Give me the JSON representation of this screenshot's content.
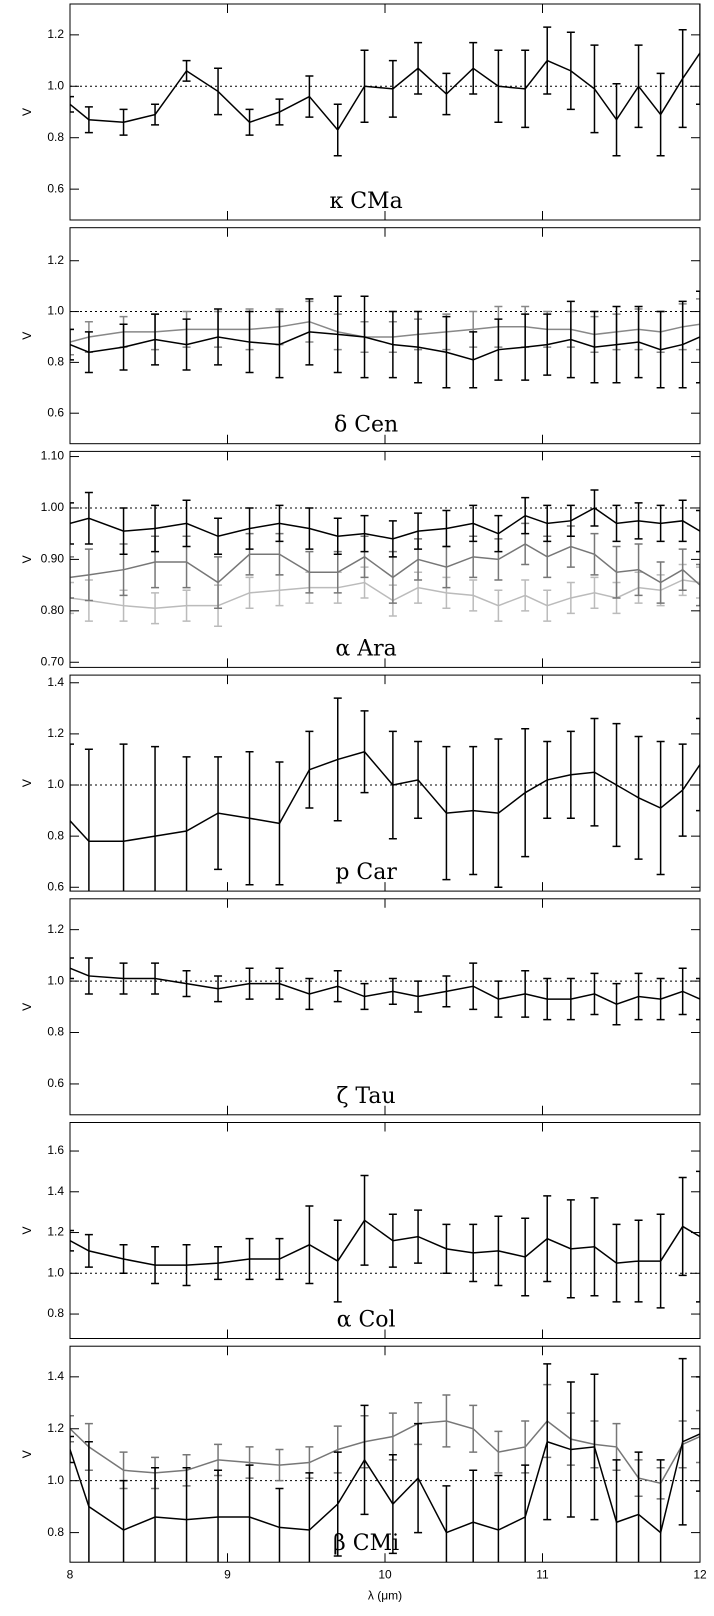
{
  "chart_data": [
    {
      "type": "line",
      "annotation": "κ CMa",
      "ylabel": "V",
      "xlim": [
        8,
        12
      ],
      "xticks": [
        8,
        9,
        10,
        11,
        12
      ],
      "ylim": [
        0.48,
        1.32
      ],
      "yticks": [
        0.6,
        0.8,
        {
          "value": 1,
          "label": "1.0"
        },
        1.2
      ],
      "reference_line": 1,
      "x": [
        8.0,
        8.12,
        8.34,
        8.54,
        8.74,
        8.94,
        9.14,
        9.33,
        9.52,
        9.7,
        9.87,
        10.05,
        10.21,
        10.39,
        10.56,
        10.72,
        10.89,
        11.03,
        11.18,
        11.33,
        11.47,
        11.61,
        11.75,
        11.89,
        12.0
      ],
      "series": [
        {
          "color": "#000000",
          "values": [
            0.93,
            0.87,
            0.86,
            0.89,
            1.06,
            0.98,
            0.86,
            0.9,
            0.96,
            0.83,
            1.0,
            0.99,
            1.07,
            0.97,
            1.07,
            1.0,
            0.99,
            1.1,
            1.06,
            0.99,
            0.87,
            1.0,
            0.89,
            1.03,
            1.13
          ],
          "errors": [
            0.03,
            0.05,
            0.05,
            0.04,
            0.04,
            0.09,
            0.05,
            0.05,
            0.08,
            0.1,
            0.14,
            0.11,
            0.1,
            0.08,
            0.1,
            0.14,
            0.15,
            0.13,
            0.15,
            0.17,
            0.14,
            0.16,
            0.16,
            0.19,
            0.2
          ]
        }
      ]
    },
    {
      "type": "line",
      "annotation": "δ Cen",
      "ylabel": "V",
      "xlim": [
        8,
        12
      ],
      "xticks": [
        8,
        9,
        10,
        11,
        12
      ],
      "ylim": [
        0.48,
        1.33
      ],
      "yticks": [
        0.6,
        0.8,
        {
          "value": 1,
          "label": "1.0"
        },
        1.2
      ],
      "reference_line": 1,
      "x": [
        8.0,
        8.12,
        8.34,
        8.54,
        8.74,
        8.94,
        9.14,
        9.33,
        9.52,
        9.7,
        9.87,
        10.05,
        10.21,
        10.39,
        10.56,
        10.72,
        10.89,
        11.03,
        11.18,
        11.33,
        11.47,
        11.61,
        11.75,
        11.89,
        12.0
      ],
      "series": [
        {
          "color": "#888888",
          "values": [
            0.88,
            0.9,
            0.92,
            0.92,
            0.93,
            0.93,
            0.93,
            0.94,
            0.96,
            0.92,
            0.9,
            0.9,
            0.91,
            0.92,
            0.93,
            0.94,
            0.94,
            0.93,
            0.93,
            0.91,
            0.92,
            0.93,
            0.92,
            0.94,
            0.95
          ],
          "errors": [
            0.05,
            0.06,
            0.06,
            0.07,
            0.07,
            0.07,
            0.08,
            0.07,
            0.08,
            0.07,
            0.06,
            0.06,
            0.06,
            0.07,
            0.07,
            0.08,
            0.08,
            0.07,
            0.07,
            0.07,
            0.07,
            0.08,
            0.08,
            0.09,
            0.1
          ]
        },
        {
          "color": "#000000",
          "values": [
            0.87,
            0.84,
            0.86,
            0.89,
            0.87,
            0.9,
            0.88,
            0.87,
            0.92,
            0.91,
            0.9,
            0.87,
            0.86,
            0.84,
            0.81,
            0.85,
            0.86,
            0.87,
            0.89,
            0.86,
            0.87,
            0.88,
            0.85,
            0.87,
            0.9
          ],
          "errors": [
            0.06,
            0.08,
            0.09,
            0.1,
            0.1,
            0.11,
            0.12,
            0.13,
            0.13,
            0.15,
            0.16,
            0.13,
            0.14,
            0.14,
            0.11,
            0.12,
            0.13,
            0.12,
            0.15,
            0.14,
            0.15,
            0.14,
            0.15,
            0.17,
            0.18
          ]
        }
      ]
    },
    {
      "type": "line",
      "annotation": "α Ara",
      "ylabel": "V",
      "xlim": [
        8,
        12
      ],
      "xticks": [
        8,
        9,
        10,
        11,
        12
      ],
      "ylim": [
        0.69,
        1.11
      ],
      "yticks": [
        {
          "value": 0.7,
          "label": "0.70"
        },
        {
          "value": 0.8,
          "label": "0.80"
        },
        {
          "value": 0.9,
          "label": "0.90"
        },
        {
          "value": 1,
          "label": "1.00"
        },
        {
          "value": 1.1,
          "label": "1.10"
        }
      ],
      "reference_line": 1,
      "x": [
        8.0,
        8.12,
        8.34,
        8.54,
        8.74,
        8.94,
        9.14,
        9.33,
        9.52,
        9.7,
        9.87,
        10.05,
        10.21,
        10.39,
        10.56,
        10.72,
        10.89,
        11.03,
        11.18,
        11.33,
        11.47,
        11.61,
        11.75,
        11.89,
        12.0
      ],
      "series": [
        {
          "color": "#bbbbbb",
          "values": [
            0.825,
            0.82,
            0.81,
            0.805,
            0.81,
            0.81,
            0.835,
            0.84,
            0.845,
            0.845,
            0.855,
            0.82,
            0.845,
            0.835,
            0.83,
            0.81,
            0.83,
            0.81,
            0.825,
            0.835,
            0.825,
            0.845,
            0.84,
            0.86,
            0.855
          ],
          "errors": [
            0.03,
            0.04,
            0.03,
            0.03,
            0.03,
            0.04,
            0.03,
            0.03,
            0.03,
            0.03,
            0.03,
            0.03,
            0.03,
            0.03,
            0.03,
            0.03,
            0.03,
            0.03,
            0.03,
            0.03,
            0.03,
            0.03,
            0.03,
            0.03,
            0.03
          ]
        },
        {
          "color": "#777777",
          "values": [
            0.865,
            0.87,
            0.88,
            0.895,
            0.895,
            0.855,
            0.91,
            0.91,
            0.875,
            0.875,
            0.905,
            0.865,
            0.9,
            0.885,
            0.905,
            0.9,
            0.93,
            0.905,
            0.925,
            0.91,
            0.875,
            0.88,
            0.855,
            0.88,
            0.85
          ],
          "errors": [
            0.04,
            0.05,
            0.05,
            0.05,
            0.05,
            0.05,
            0.04,
            0.04,
            0.04,
            0.04,
            0.04,
            0.05,
            0.04,
            0.04,
            0.04,
            0.04,
            0.04,
            0.04,
            0.04,
            0.04,
            0.05,
            0.05,
            0.04,
            0.04,
            0.04
          ]
        },
        {
          "color": "#000000",
          "values": [
            0.97,
            0.98,
            0.955,
            0.96,
            0.97,
            0.945,
            0.96,
            0.97,
            0.96,
            0.945,
            0.95,
            0.94,
            0.955,
            0.96,
            0.97,
            0.95,
            0.985,
            0.97,
            0.975,
            1.0,
            0.97,
            0.975,
            0.97,
            0.975,
            0.955
          ],
          "errors": [
            0.04,
            0.05,
            0.045,
            0.045,
            0.045,
            0.035,
            0.04,
            0.035,
            0.04,
            0.035,
            0.035,
            0.035,
            0.035,
            0.035,
            0.035,
            0.035,
            0.035,
            0.035,
            0.03,
            0.035,
            0.035,
            0.035,
            0.035,
            0.04,
            0.04
          ]
        }
      ]
    },
    {
      "type": "line",
      "annotation": "p Car",
      "ylabel": "V",
      "xlim": [
        8,
        12
      ],
      "xticks": [
        8,
        9,
        10,
        11,
        12
      ],
      "ylim": [
        0.585,
        1.43
      ],
      "yticks": [
        0.6,
        0.8,
        {
          "value": 1,
          "label": "1.0"
        },
        1.2,
        1.4
      ],
      "reference_line": 1,
      "x": [
        8.0,
        8.12,
        8.34,
        8.54,
        8.74,
        8.94,
        9.14,
        9.33,
        9.52,
        9.7,
        9.87,
        10.05,
        10.21,
        10.39,
        10.56,
        10.72,
        10.89,
        11.03,
        11.18,
        11.33,
        11.47,
        11.61,
        11.75,
        11.89,
        12.0
      ],
      "series": [
        {
          "color": "#000000",
          "values": [
            0.86,
            0.78,
            0.78,
            0.8,
            0.82,
            0.89,
            0.87,
            0.85,
            1.06,
            1.1,
            1.13,
            1.0,
            1.02,
            0.89,
            0.9,
            0.89,
            0.97,
            1.02,
            1.04,
            1.05,
            1.0,
            0.95,
            0.91,
            0.98,
            1.08
          ],
          "errors": [
            0.3,
            0.36,
            0.38,
            0.35,
            0.29,
            0.22,
            0.26,
            0.24,
            0.15,
            0.24,
            0.16,
            0.21,
            0.15,
            0.26,
            0.25,
            0.29,
            0.25,
            0.15,
            0.17,
            0.21,
            0.24,
            0.24,
            0.26,
            0.18,
            0.18
          ]
        }
      ]
    },
    {
      "type": "line",
      "annotation": "ζ Tau",
      "ylabel": "V",
      "xlim": [
        8,
        12
      ],
      "xticks": [
        8,
        9,
        10,
        11,
        12
      ],
      "ylim": [
        0.48,
        1.32
      ],
      "yticks": [
        0.6,
        0.8,
        {
          "value": 1,
          "label": "1.0"
        },
        1.2
      ],
      "reference_line": 1,
      "x": [
        8.0,
        8.12,
        8.34,
        8.54,
        8.74,
        8.94,
        9.14,
        9.33,
        9.52,
        9.7,
        9.87,
        10.05,
        10.21,
        10.39,
        10.56,
        10.72,
        10.89,
        11.03,
        11.18,
        11.33,
        11.47,
        11.61,
        11.75,
        11.89,
        12.0
      ],
      "series": [
        {
          "color": "#000000",
          "values": [
            1.05,
            1.02,
            1.01,
            1.01,
            0.99,
            0.97,
            0.99,
            0.99,
            0.95,
            0.98,
            0.94,
            0.96,
            0.94,
            0.96,
            0.98,
            0.93,
            0.95,
            0.93,
            0.93,
            0.95,
            0.91,
            0.94,
            0.93,
            0.96,
            0.93
          ],
          "errors": [
            0.04,
            0.07,
            0.06,
            0.06,
            0.05,
            0.05,
            0.06,
            0.06,
            0.06,
            0.06,
            0.05,
            0.05,
            0.06,
            0.06,
            0.09,
            0.07,
            0.09,
            0.08,
            0.08,
            0.08,
            0.08,
            0.09,
            0.08,
            0.09,
            0.08
          ]
        }
      ]
    },
    {
      "type": "line",
      "annotation": "α Col",
      "ylabel": "V",
      "xlim": [
        8,
        12
      ],
      "xticks": [
        8,
        9,
        10,
        11,
        12
      ],
      "ylim": [
        0.68,
        1.74
      ],
      "yticks": [
        0.8,
        {
          "value": 1,
          "label": "1.0"
        },
        1.2,
        1.4,
        1.6
      ],
      "reference_line": 1,
      "x": [
        8.0,
        8.12,
        8.34,
        8.54,
        8.74,
        8.94,
        9.14,
        9.33,
        9.52,
        9.7,
        9.87,
        10.05,
        10.21,
        10.39,
        10.56,
        10.72,
        10.89,
        11.03,
        11.18,
        11.33,
        11.47,
        11.61,
        11.75,
        11.89,
        12.0
      ],
      "series": [
        {
          "color": "#000000",
          "values": [
            1.16,
            1.11,
            1.07,
            1.04,
            1.04,
            1.05,
            1.07,
            1.07,
            1.14,
            1.06,
            1.26,
            1.16,
            1.18,
            1.12,
            1.1,
            1.11,
            1.08,
            1.17,
            1.12,
            1.13,
            1.05,
            1.06,
            1.06,
            1.23,
            1.18
          ],
          "errors": [
            0.05,
            0.08,
            0.07,
            0.09,
            0.1,
            0.08,
            0.1,
            0.1,
            0.19,
            0.2,
            0.22,
            0.13,
            0.13,
            0.12,
            0.14,
            0.17,
            0.19,
            0.21,
            0.24,
            0.24,
            0.19,
            0.2,
            0.23,
            0.24,
            0.32
          ]
        }
      ]
    },
    {
      "type": "line",
      "annotation": "β CMi",
      "ylabel": "V",
      "xlabel": "λ (μm)",
      "xlim": [
        8,
        12
      ],
      "xticks": [
        8,
        9,
        10,
        11,
        12
      ],
      "ylim": [
        0.686,
        1.518
      ],
      "yticks": [
        0.8,
        {
          "value": 1,
          "label": "1.0"
        },
        1.2,
        1.4
      ],
      "reference_line": 1,
      "x": [
        8.0,
        8.12,
        8.34,
        8.54,
        8.74,
        8.94,
        9.14,
        9.33,
        9.52,
        9.7,
        9.87,
        10.05,
        10.21,
        10.39,
        10.56,
        10.72,
        10.89,
        11.03,
        11.18,
        11.33,
        11.47,
        11.61,
        11.75,
        11.89,
        12.0
      ],
      "series": [
        {
          "color": "#777777",
          "values": [
            1.2,
            1.13,
            1.04,
            1.03,
            1.04,
            1.08,
            1.07,
            1.06,
            1.07,
            1.12,
            1.15,
            1.17,
            1.22,
            1.23,
            1.2,
            1.11,
            1.13,
            1.23,
            1.16,
            1.14,
            1.13,
            1.01,
            0.99,
            1.14,
            1.17
          ],
          "errors": [
            0.05,
            0.09,
            0.07,
            0.06,
            0.06,
            0.06,
            0.06,
            0.06,
            0.06,
            0.09,
            0.1,
            0.09,
            0.08,
            0.1,
            0.09,
            0.08,
            0.1,
            0.14,
            0.1,
            0.09,
            0.09,
            0.07,
            0.06,
            0.09,
            0.1
          ]
        },
        {
          "color": "#000000",
          "values": [
            1.12,
            0.9,
            0.81,
            0.86,
            0.85,
            0.86,
            0.86,
            0.82,
            0.81,
            0.91,
            1.08,
            0.91,
            1.01,
            0.8,
            0.84,
            0.81,
            0.86,
            1.15,
            1.12,
            1.13,
            0.84,
            0.87,
            0.8,
            1.15,
            1.18
          ],
          "errors": [
            0.05,
            0.25,
            0.19,
            0.19,
            0.2,
            0.18,
            0.2,
            0.15,
            0.22,
            0.2,
            0.21,
            0.19,
            0.21,
            0.18,
            0.2,
            0.21,
            0.2,
            0.3,
            0.26,
            0.28,
            0.24,
            0.24,
            0.28,
            0.32,
            0.22
          ]
        }
      ]
    }
  ]
}
